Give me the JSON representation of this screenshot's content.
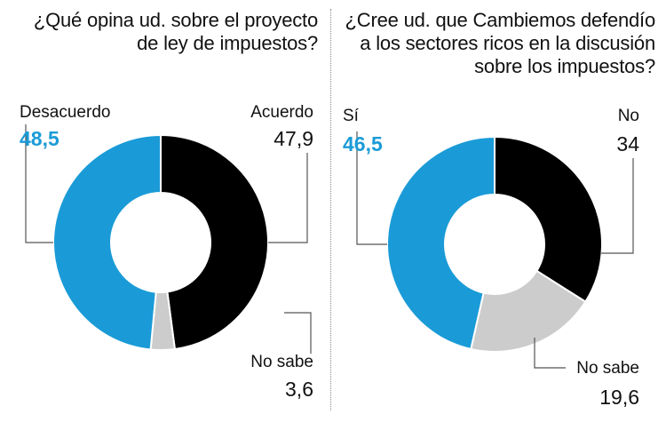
{
  "colors": {
    "accent": "#1a9bd7",
    "dark": "#000000",
    "light": "#cccccc",
    "leader": "#555555"
  },
  "chart_data": [
    {
      "type": "pie",
      "variant": "donut",
      "title": "¿Qué opina ud. sobre el proyecto de ley de impuestos?",
      "slices": [
        {
          "label": "Acuerdo",
          "value": 47.9,
          "value_text": "47,9",
          "color": "#000000"
        },
        {
          "label": "No sabe",
          "value": 3.6,
          "value_text": "3,6",
          "color": "#cccccc"
        },
        {
          "label": "Desacuerdo",
          "value": 48.5,
          "value_text": "48,5",
          "color": "#1a9bd7"
        }
      ]
    },
    {
      "type": "pie",
      "variant": "donut",
      "title": "¿Cree ud. que Cambiemos defendío a los sectores ricos en la discusión sobre los impuestos?",
      "slices": [
        {
          "label": "No",
          "value": 34,
          "value_text": "34",
          "color": "#000000"
        },
        {
          "label": "No sabe",
          "value": 19.6,
          "value_text": "19,6",
          "color": "#cccccc"
        },
        {
          "label": "Sí",
          "value": 46.5,
          "value_text": "46,5",
          "color": "#1a9bd7"
        }
      ]
    }
  ]
}
